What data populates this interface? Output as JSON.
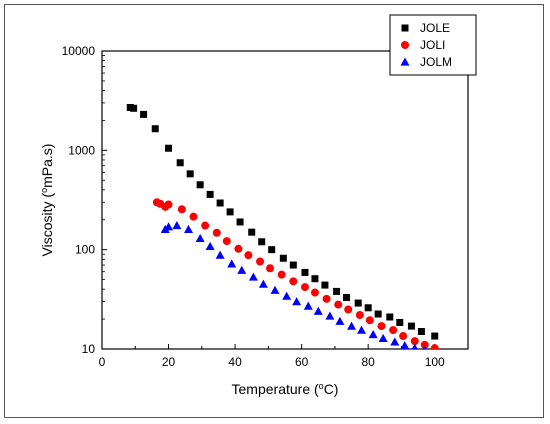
{
  "chart_data": {
    "type": "scatter",
    "title": "",
    "xlabel": {
      "pre": "Temperature (",
      "sup": "o",
      "post": "C)"
    },
    "ylabel": {
      "pre": "Viscosity (",
      "sup": "o",
      "post": "mPa.s)"
    },
    "xlim": [
      0,
      110
    ],
    "ylim": [
      10,
      10000
    ],
    "yscale": "log",
    "x_ticks": [
      0,
      20,
      40,
      60,
      80,
      100
    ],
    "y_ticks": [
      10,
      100,
      1000,
      10000
    ],
    "x_tick_labels": [
      "0",
      "20",
      "40",
      "60",
      "80",
      "100"
    ],
    "y_tick_labels": [
      "10",
      "100",
      "1000",
      "10000"
    ],
    "grid": false,
    "legend_position": "top-right",
    "series": [
      {
        "name": "JOLE",
        "marker": "square",
        "color": "#000000",
        "points": [
          [
            8.5,
            2700
          ],
          [
            9.5,
            2650
          ],
          [
            12.5,
            2300
          ],
          [
            16,
            1650
          ],
          [
            20,
            1050
          ],
          [
            23.5,
            750
          ],
          [
            26.5,
            580
          ],
          [
            29.5,
            450
          ],
          [
            32.5,
            360
          ],
          [
            35.5,
            295
          ],
          [
            38.5,
            240
          ],
          [
            41.5,
            190
          ],
          [
            45,
            150
          ],
          [
            48,
            120
          ],
          [
            51,
            100
          ],
          [
            54.5,
            82
          ],
          [
            57.5,
            70
          ],
          [
            61,
            59
          ],
          [
            64,
            51
          ],
          [
            67,
            44
          ],
          [
            70.5,
            38
          ],
          [
            73.5,
            33
          ],
          [
            77,
            29
          ],
          [
            80,
            26
          ],
          [
            83,
            22.5
          ],
          [
            86.5,
            21
          ],
          [
            89.5,
            18.5
          ],
          [
            93,
            17
          ],
          [
            96,
            15
          ],
          [
            100,
            13.5
          ]
        ]
      },
      {
        "name": "JOLI",
        "marker": "circle",
        "color": "#ff0000",
        "points": [
          [
            16.5,
            300
          ],
          [
            17.5,
            290
          ],
          [
            19,
            270
          ],
          [
            20,
            285
          ],
          [
            24,
            255
          ],
          [
            27.5,
            215
          ],
          [
            31,
            175
          ],
          [
            34.5,
            148
          ],
          [
            37.5,
            122
          ],
          [
            41,
            102
          ],
          [
            44,
            88
          ],
          [
            47.5,
            76
          ],
          [
            50.5,
            65
          ],
          [
            54,
            56
          ],
          [
            57.5,
            48
          ],
          [
            61,
            42
          ],
          [
            64,
            37
          ],
          [
            67.5,
            32
          ],
          [
            71,
            28
          ],
          [
            74,
            25
          ],
          [
            77.5,
            22
          ],
          [
            80.5,
            19.5
          ],
          [
            84,
            17
          ],
          [
            87.5,
            15.5
          ],
          [
            90.5,
            13.5
          ],
          [
            94,
            12
          ],
          [
            97,
            11
          ],
          [
            100,
            10.2
          ]
        ]
      },
      {
        "name": "JOLM",
        "marker": "triangle",
        "color": "#0000ff",
        "points": [
          [
            19,
            160
          ],
          [
            20,
            170
          ],
          [
            22.5,
            175
          ],
          [
            26,
            160
          ],
          [
            29.5,
            130
          ],
          [
            32.5,
            108
          ],
          [
            35.5,
            88
          ],
          [
            39,
            72
          ],
          [
            42,
            62
          ],
          [
            45.5,
            53
          ],
          [
            48.5,
            45
          ],
          [
            52,
            39
          ],
          [
            55.5,
            34
          ],
          [
            58.5,
            30
          ],
          [
            62,
            27
          ],
          [
            65,
            24
          ],
          [
            68.5,
            21.5
          ],
          [
            71.5,
            19
          ],
          [
            75,
            17
          ],
          [
            78,
            15.5
          ],
          [
            81.5,
            14
          ],
          [
            84.5,
            12.8
          ],
          [
            88,
            11.8
          ],
          [
            91,
            10.8
          ],
          [
            94,
            10.2
          ],
          [
            97,
            9.7
          ]
        ]
      }
    ]
  }
}
